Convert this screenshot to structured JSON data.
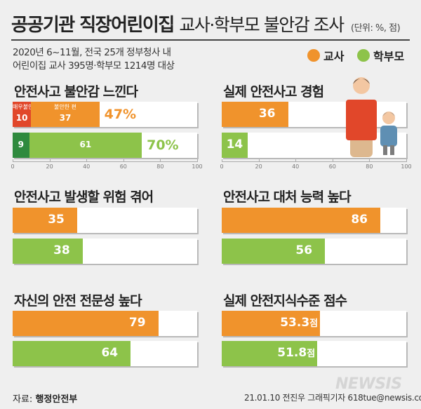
{
  "header": {
    "title": "공공기관 직장어린이집",
    "subtitle": "교사·학부모 불안감 조사",
    "unit": "(단위: %, 점)",
    "meta_line1": "2020년 6~11월, 전국 25개 정부청사 내",
    "meta_line2": "어린이집 교사 395명·학부모 1214명 대상"
  },
  "legend": [
    {
      "label": "교사",
      "color": "#f0932c"
    },
    {
      "label": "학부모",
      "color": "#8dc34a"
    }
  ],
  "colors": {
    "teacher": "#f0932c",
    "parent": "#8dc34a",
    "teacher_dark": "#e1472a",
    "parent_dark": "#2f8a3e",
    "teacher_total_text": "#f0932c",
    "parent_total_text": "#8dc34a"
  },
  "chart_data": [
    {
      "type": "bar",
      "title": "안전사고 불안감 느낀다",
      "xlim": [
        0,
        100
      ],
      "ticks": [
        "0",
        "20",
        "40",
        "60",
        "80",
        "100"
      ],
      "series": [
        {
          "name": "교사",
          "segments": [
            {
              "label": "매우불안",
              "value": 10
            },
            {
              "label": "불안한 편",
              "value": 37
            }
          ],
          "total": 47,
          "total_label": "47%"
        },
        {
          "name": "학부모",
          "segments": [
            {
              "value": 9
            },
            {
              "value": 61
            }
          ],
          "total": 70,
          "total_label": "70%"
        }
      ]
    },
    {
      "type": "bar",
      "title": "실제 안전사고 경험",
      "xlim": [
        0,
        100
      ],
      "ticks": [
        "0",
        "20",
        "40",
        "60",
        "80",
        "100"
      ],
      "series": [
        {
          "name": "교사",
          "value": 36,
          "label": "36"
        },
        {
          "name": "학부모",
          "value": 14,
          "label": "14"
        }
      ]
    },
    {
      "type": "bar",
      "title": "안전사고 발생할 위험 겪어",
      "xlim": [
        0,
        100
      ],
      "series": [
        {
          "name": "교사",
          "value": 35,
          "label": "35"
        },
        {
          "name": "학부모",
          "value": 38,
          "label": "38"
        }
      ]
    },
    {
      "type": "bar",
      "title": "안전사고 대처 능력 높다",
      "xlim": [
        0,
        100
      ],
      "series": [
        {
          "name": "교사",
          "value": 86,
          "label": "86"
        },
        {
          "name": "학부모",
          "value": 56,
          "label": "56"
        }
      ]
    },
    {
      "type": "bar",
      "title": "자신의 안전 전문성 높다",
      "xlim": [
        0,
        100
      ],
      "series": [
        {
          "name": "교사",
          "value": 79,
          "label": "79"
        },
        {
          "name": "학부모",
          "value": 64,
          "label": "64"
        }
      ]
    },
    {
      "type": "bar",
      "title": "실제 안전지식수준 점수",
      "xlim": [
        0,
        100
      ],
      "series": [
        {
          "name": "교사",
          "value": 53.3,
          "label": "53.3",
          "unit": "점"
        },
        {
          "name": "학부모",
          "value": 51.8,
          "label": "51.8",
          "unit": "점"
        }
      ]
    }
  ],
  "footer": {
    "source_label": "자료:",
    "source": "행정안전부",
    "credit": "21.01.10 전진우 그래픽기자 618tue@newsis.com",
    "logo": "NEWSIS"
  }
}
